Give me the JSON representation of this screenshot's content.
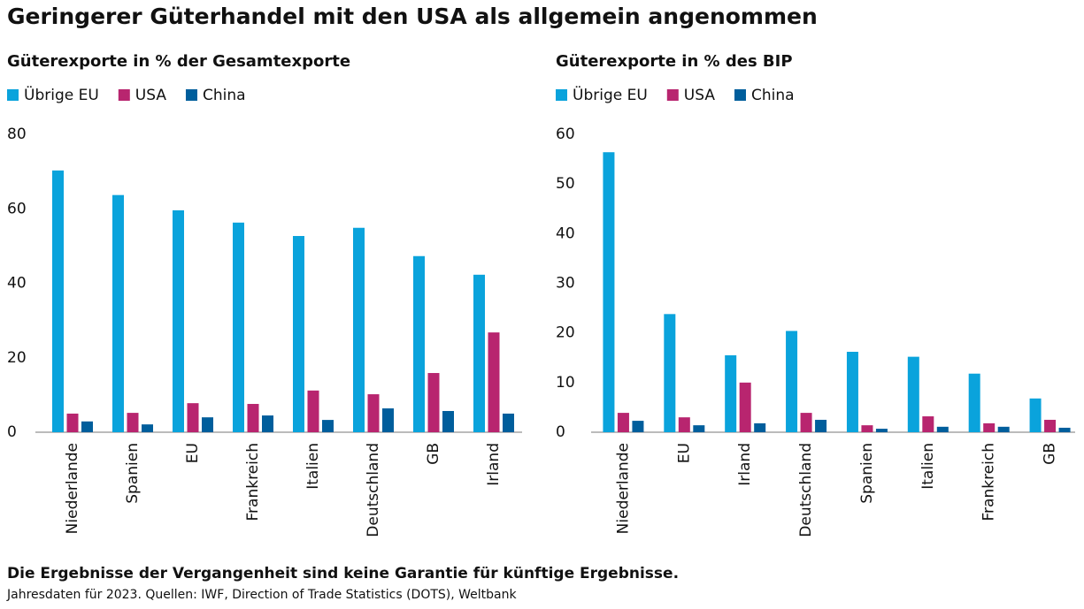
{
  "title": "Geringerer Güterhandel mit den USA als allgemein angenommen",
  "disclaimer": "Die Ergebnisse der Vergangenheit sind keine Garantie für künftige Ergebnisse.",
  "source": "Jahresdaten für 2023. Quellen: IWF, Direction of Trade Statistics (DOTS), Weltbank",
  "chart_data": [
    {
      "type": "bar",
      "subtitle": "Güterexporte in % der Gesamtexporte",
      "categories": [
        "Niederlande",
        "Spanien",
        "EU",
        "Frankreich",
        "Italien",
        "Deutschland",
        "GB",
        "Irland"
      ],
      "series": [
        {
          "name": "Übrige EU",
          "color": "#0aa3dc",
          "values": [
            70.3,
            63.7,
            59.6,
            56.3,
            52.7,
            54.9,
            47.3,
            42.3
          ]
        },
        {
          "name": "USA",
          "color": "#b8256f",
          "values": [
            5.0,
            5.2,
            7.8,
            7.6,
            11.2,
            10.2,
            15.9,
            26.8
          ]
        },
        {
          "name": "China",
          "color": "#005e9c",
          "values": [
            2.9,
            2.1,
            4.0,
            4.5,
            3.3,
            6.4,
            5.7,
            5.0
          ]
        }
      ],
      "ylim": [
        0,
        80
      ],
      "yticks": [
        0,
        20,
        40,
        60,
        80
      ]
    },
    {
      "type": "bar",
      "subtitle": "Güterexporte in % des BIP",
      "categories": [
        "Niederlande",
        "EU",
        "Irland",
        "Deutschland",
        "Spanien",
        "Italien",
        "Frankreich",
        "GB"
      ],
      "series": [
        {
          "name": "Übrige EU",
          "color": "#0aa3dc",
          "values": [
            56.4,
            23.8,
            15.5,
            20.4,
            16.2,
            15.2,
            11.8,
            6.8
          ]
        },
        {
          "name": "USA",
          "color": "#b8256f",
          "values": [
            3.9,
            3.0,
            10.0,
            3.9,
            1.4,
            3.2,
            1.8,
            2.5
          ]
        },
        {
          "name": "China",
          "color": "#005e9c",
          "values": [
            2.3,
            1.4,
            1.8,
            2.5,
            0.7,
            1.1,
            1.1,
            0.9
          ]
        }
      ],
      "ylim": [
        0,
        60
      ],
      "yticks": [
        0,
        10,
        20,
        30,
        40,
        50,
        60
      ]
    }
  ]
}
